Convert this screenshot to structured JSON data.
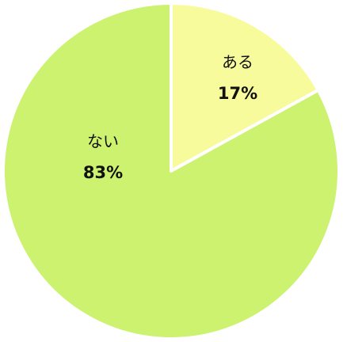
{
  "chart_data": {
    "type": "pie",
    "categories": [
      "ある",
      "ない"
    ],
    "values": [
      17,
      83
    ],
    "value_labels": [
      "17%",
      "83%"
    ],
    "colors": [
      "#f8fb9c",
      "#ccf26f"
    ]
  }
}
